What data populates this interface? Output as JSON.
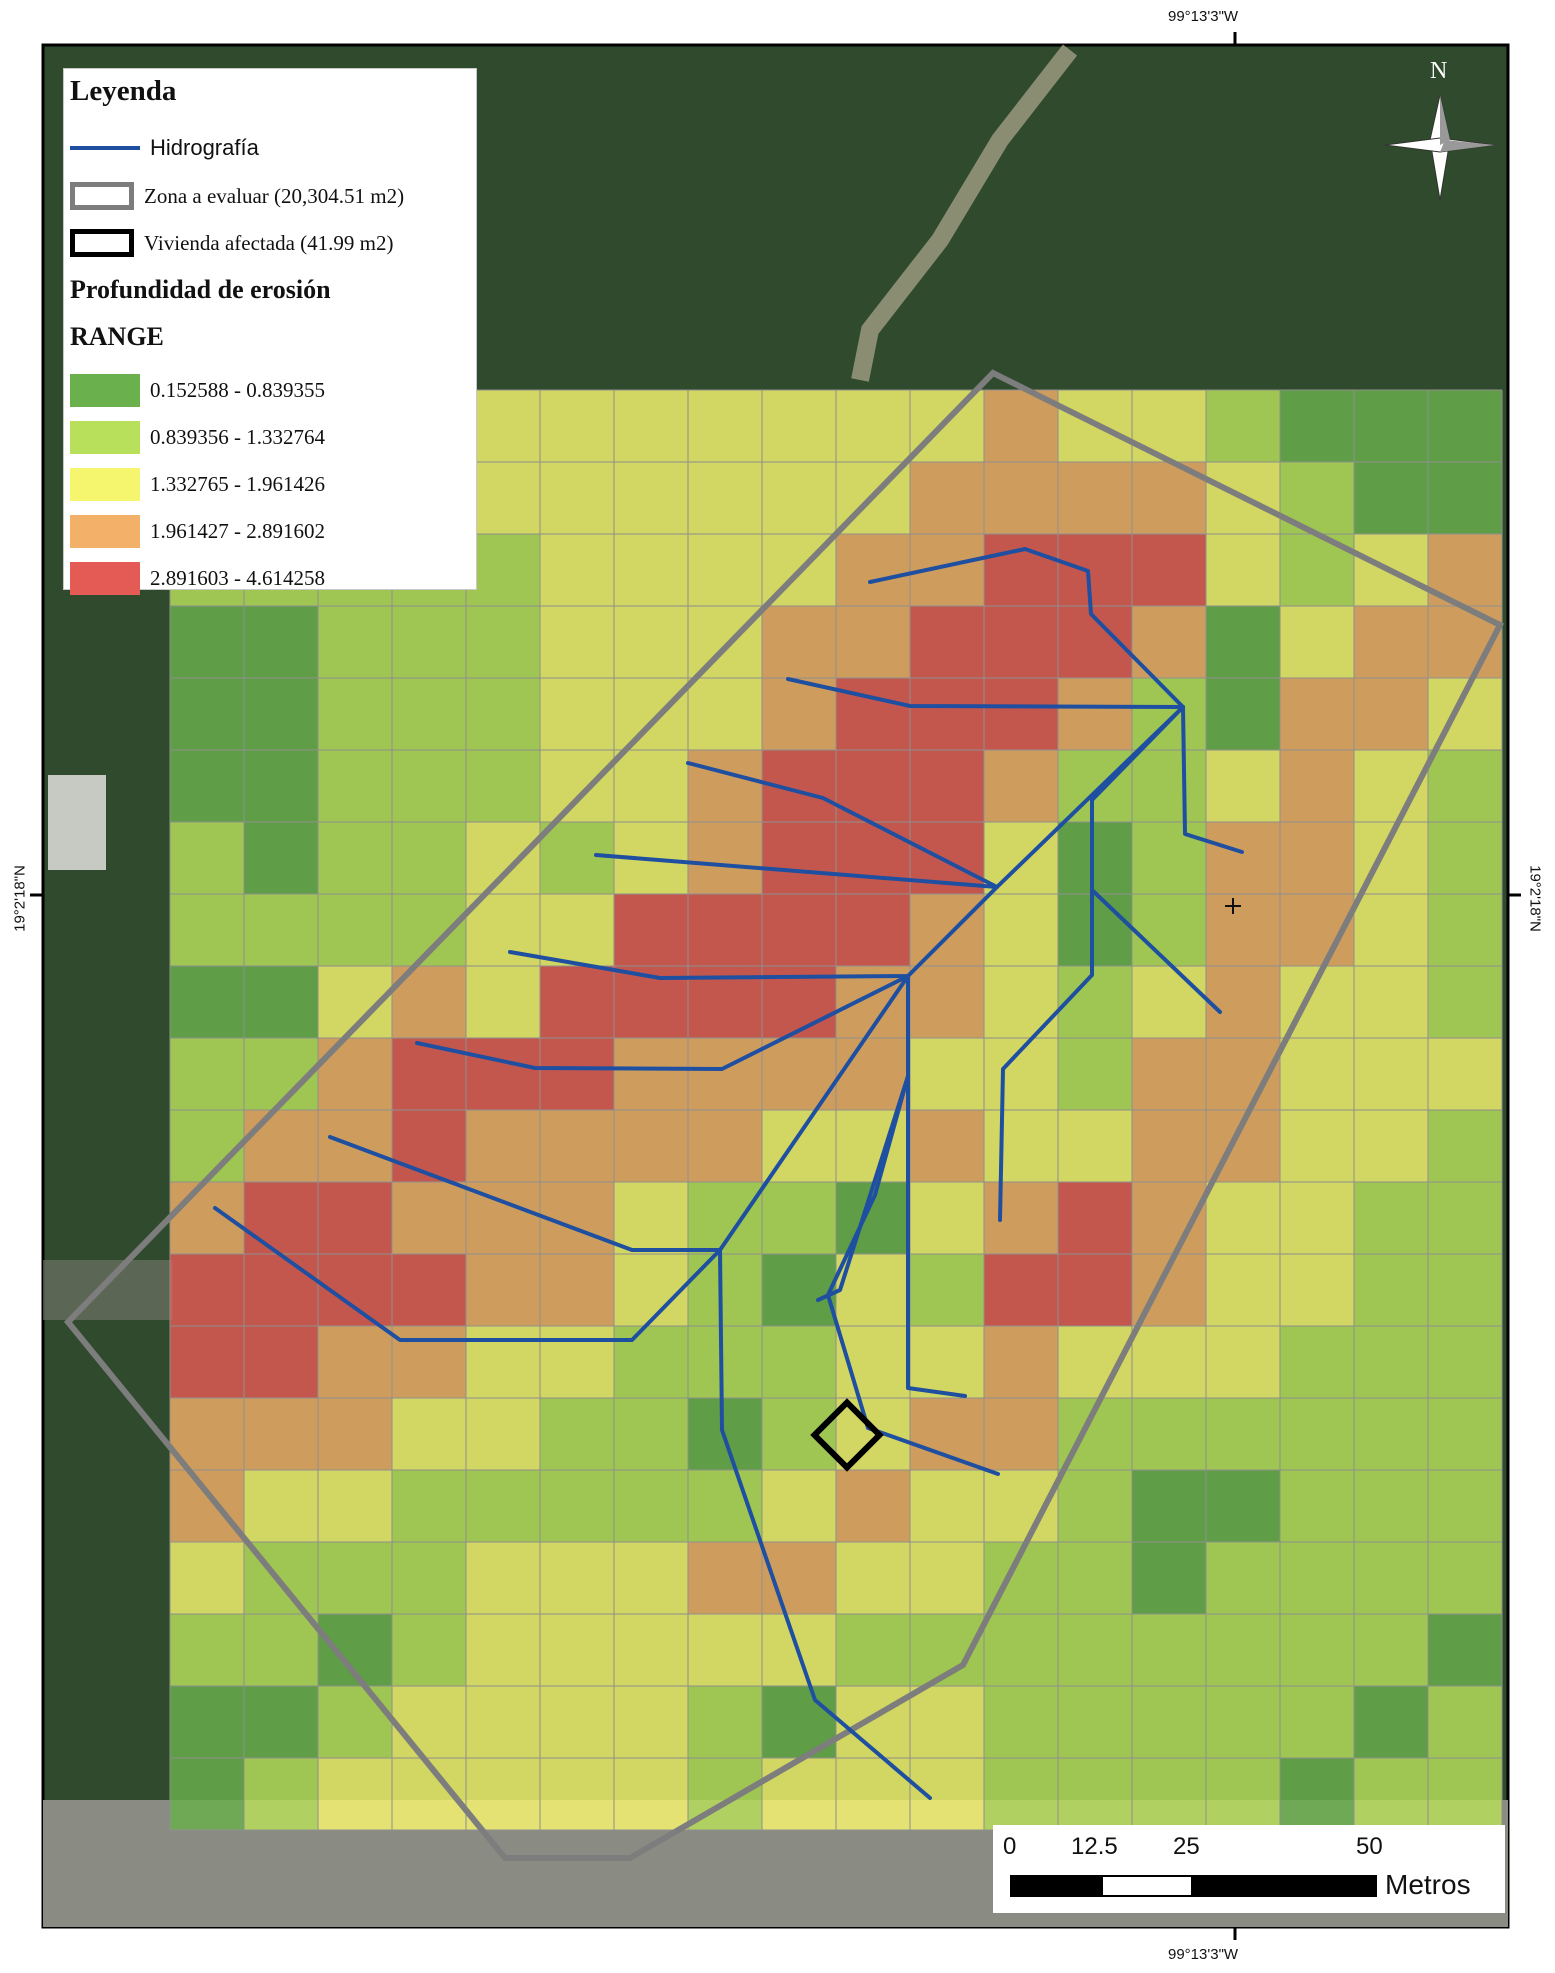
{
  "coordinates": {
    "top_label": "99°13'3\"W",
    "bottom_label": "99°13'3\"W",
    "left_label": "19°2'18\"N",
    "right_label": "19°2'18\"N"
  },
  "north_arrow": {
    "label": "N"
  },
  "legend": {
    "title": "Leyenda",
    "hidrografia": "Hidrografía",
    "zona": "Zona a evaluar (20,304.51 m2)",
    "vivienda": "Vivienda afectada (41.99 m2)",
    "section_title": "Profundidad de erosión",
    "range_title": "RANGE",
    "ranges": [
      {
        "label": "0.152588 - 0.839355",
        "color": "#6ab04c"
      },
      {
        "label": "0.839356 - 1.332764",
        "color": "#b8e05a"
      },
      {
        "label": "1.332765 - 1.961426",
        "color": "#f6f56e"
      },
      {
        "label": "1.961427 - 2.891602",
        "color": "#f2b068"
      },
      {
        "label": "2.891603 - 4.614258",
        "color": "#e45a55"
      }
    ]
  },
  "scale_bar": {
    "ticks": [
      "0",
      "12.5",
      "25",
      "50"
    ],
    "unit": "Metros"
  },
  "colors": {
    "hydrography": "#1f4fa0",
    "zone_outline": "#7d7d7d",
    "house_outline": "#000000",
    "satellite_dark": "#2f4a2c",
    "satellite_urban": "#8a8c84"
  },
  "grid": {
    "cols": 18,
    "rows": 20,
    "note_classes": [
      "0=green,1=light-green,2=yellow,3=orange,4=red"
    ],
    "cells": [
      [
        2,
        2,
        2,
        2,
        2,
        2,
        2,
        2,
        2,
        2,
        2,
        3,
        2,
        2,
        1,
        0,
        0,
        0
      ],
      [
        2,
        2,
        2,
        2,
        2,
        2,
        2,
        2,
        2,
        2,
        3,
        3,
        3,
        3,
        2,
        1,
        0,
        0
      ],
      [
        1,
        1,
        1,
        1,
        1,
        2,
        2,
        2,
        2,
        3,
        3,
        4,
        4,
        4,
        2,
        1,
        2,
        3
      ],
      [
        0,
        0,
        1,
        1,
        1,
        2,
        2,
        2,
        3,
        3,
        4,
        4,
        4,
        3,
        0,
        2,
        3,
        3
      ],
      [
        0,
        0,
        1,
        1,
        1,
        2,
        2,
        2,
        3,
        4,
        4,
        4,
        3,
        1,
        0,
        3,
        3,
        2
      ],
      [
        0,
        0,
        1,
        1,
        1,
        2,
        2,
        3,
        4,
        4,
        4,
        3,
        1,
        1,
        2,
        3,
        2,
        1
      ],
      [
        1,
        0,
        1,
        1,
        2,
        1,
        2,
        3,
        4,
        4,
        4,
        2,
        0,
        1,
        3,
        3,
        2,
        1
      ],
      [
        1,
        1,
        1,
        1,
        2,
        2,
        4,
        4,
        4,
        4,
        3,
        2,
        0,
        1,
        3,
        3,
        2,
        1
      ],
      [
        0,
        0,
        2,
        3,
        2,
        4,
        4,
        4,
        4,
        3,
        3,
        2,
        1,
        2,
        3,
        2,
        2,
        1
      ],
      [
        1,
        1,
        3,
        4,
        4,
        4,
        3,
        3,
        3,
        3,
        2,
        2,
        1,
        3,
        3,
        2,
        2,
        2
      ],
      [
        1,
        3,
        3,
        4,
        3,
        3,
        3,
        3,
        2,
        2,
        3,
        2,
        2,
        3,
        3,
        2,
        2,
        1
      ],
      [
        3,
        4,
        4,
        3,
        3,
        3,
        2,
        1,
        1,
        0,
        2,
        3,
        4,
        3,
        2,
        2,
        1,
        1
      ],
      [
        4,
        4,
        4,
        4,
        3,
        3,
        2,
        1,
        0,
        2,
        1,
        4,
        4,
        3,
        2,
        2,
        1,
        1
      ],
      [
        4,
        4,
        3,
        3,
        2,
        2,
        1,
        1,
        1,
        2,
        2,
        3,
        2,
        2,
        2,
        1,
        1,
        1
      ],
      [
        3,
        3,
        3,
        2,
        2,
        1,
        1,
        0,
        1,
        2,
        3,
        3,
        1,
        1,
        1,
        1,
        1,
        1
      ],
      [
        3,
        2,
        2,
        1,
        1,
        1,
        1,
        1,
        2,
        3,
        2,
        2,
        1,
        0,
        0,
        1,
        1,
        1
      ],
      [
        2,
        1,
        1,
        1,
        2,
        2,
        2,
        3,
        3,
        2,
        2,
        1,
        1,
        0,
        1,
        1,
        1,
        1
      ],
      [
        1,
        1,
        0,
        1,
        2,
        2,
        2,
        2,
        2,
        1,
        1,
        1,
        1,
        1,
        1,
        1,
        1,
        0
      ],
      [
        0,
        0,
        1,
        2,
        2,
        2,
        2,
        1,
        0,
        2,
        2,
        1,
        1,
        1,
        1,
        1,
        0,
        1
      ],
      [
        0,
        1,
        2,
        2,
        2,
        2,
        2,
        1,
        2,
        2,
        2,
        1,
        1,
        1,
        1,
        0,
        1,
        1
      ]
    ]
  }
}
